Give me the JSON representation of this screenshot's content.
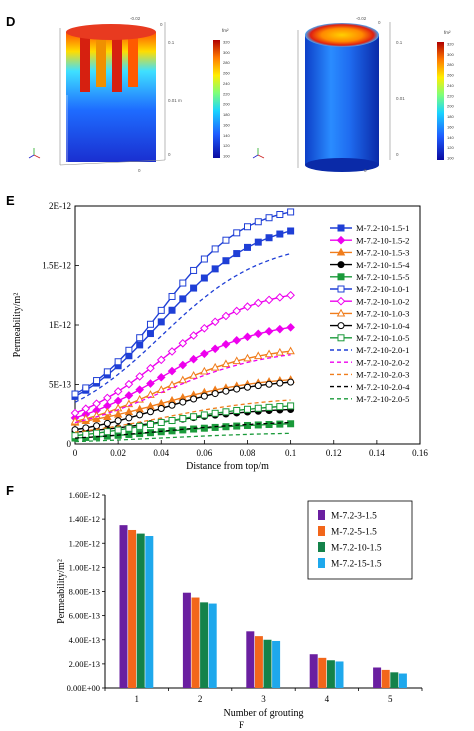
{
  "panels": {
    "d": {
      "letter": "D",
      "colorbar_unit": "fm²",
      "colorbar_ticks": [
        "320",
        "300",
        "280",
        "260",
        "240",
        "220",
        "200",
        "180",
        "160",
        "140",
        "120",
        "100"
      ],
      "axis_labels_left": [
        "-0.02",
        "0",
        "0.02",
        "0.1",
        "0.05",
        "0.01",
        "0",
        "-0.02",
        "0",
        "0.02"
      ],
      "axis_labels_right": [
        "-0.02",
        "0",
        "0.02",
        "0.1",
        "0.05",
        "0.01",
        "0",
        "-0.02",
        "0",
        "0.02"
      ],
      "axis_unit": "m"
    },
    "e": {
      "letter": "E"
    },
    "f": {
      "letter": "F",
      "caption": "F"
    }
  },
  "chart_data": [
    {
      "id": "E",
      "type": "line",
      "xlabel": "Distance from top/m",
      "ylabel": "Permeability/m²",
      "xlim": [
        0,
        0.16
      ],
      "ylim": [
        0,
        2e-12
      ],
      "x_ticks": [
        "0",
        "0.02",
        "0.04",
        "0.06",
        "0.08",
        "0.1",
        "0.12",
        "0.14",
        "0.16"
      ],
      "y_ticks": [
        "0",
        "5E-13",
        "1E-12",
        "1.5E-12",
        "2E-12"
      ],
      "legend_position": "right",
      "series": [
        {
          "name": "M-7.2-10-1.5-1",
          "color": "#1f3fd6",
          "marker": "square-filled",
          "dashed": false,
          "y0": 4e-13,
          "y1": 1.79e-12,
          "k": 45
        },
        {
          "name": "M-7.2-10-1.5-2",
          "color": "#ee00ee",
          "marker": "diamond-filled",
          "dashed": false,
          "y0": 2.2e-13,
          "y1": 9.8e-13,
          "k": 43
        },
        {
          "name": "M-7.2-10-1.5-3",
          "color": "#f07d1c",
          "marker": "triangle-filled",
          "dashed": false,
          "y0": 1.8e-13,
          "y1": 5.4e-13,
          "k": 42
        },
        {
          "name": "M-7.2-10-1.5-4",
          "color": "#000000",
          "marker": "circle-filled",
          "dashed": false,
          "y0": 1e-13,
          "y1": 2.9e-13,
          "k": 40
        },
        {
          "name": "M-7.2-10-1.5-5",
          "color": "#1a9a3a",
          "marker": "square-filled",
          "dashed": false,
          "y0": 5e-14,
          "y1": 1.7e-13,
          "k": 38
        },
        {
          "name": "M-7.2-10-1.0-1",
          "color": "#1f3fd6",
          "marker": "square-open",
          "dashed": false,
          "y0": 4.2e-13,
          "y1": 1.95e-12,
          "k": 52
        },
        {
          "name": "M-7.2-10-1.0-2",
          "color": "#ee00ee",
          "marker": "diamond-open",
          "dashed": false,
          "y0": 2.6e-13,
          "y1": 1.25e-12,
          "k": 46
        },
        {
          "name": "M-7.2-10-1.0-3",
          "color": "#f07d1c",
          "marker": "triangle-open",
          "dashed": false,
          "y0": 1.9e-13,
          "y1": 7.8e-13,
          "k": 44
        },
        {
          "name": "M-7.2-10-1.0-4",
          "color": "#000000",
          "marker": "circle-open",
          "dashed": false,
          "y0": 1.2e-13,
          "y1": 5.2e-13,
          "k": 42
        },
        {
          "name": "M-7.2-10-1.0-5",
          "color": "#1a9a3a",
          "marker": "square-open",
          "dashed": false,
          "y0": 7e-14,
          "y1": 3.2e-13,
          "k": 40
        },
        {
          "name": "M-7.2-10-2.0-1",
          "color": "#1f3fd6",
          "marker": "none",
          "dashed": true,
          "y0": 3.5e-13,
          "y1": 1.6e-12,
          "k": 42
        },
        {
          "name": "M-7.2-10-2.0-2",
          "color": "#ee00ee",
          "marker": "none",
          "dashed": true,
          "y0": 1.8e-13,
          "y1": 7.5e-13,
          "k": 40
        },
        {
          "name": "M-7.2-10-2.0-3",
          "color": "#f07d1c",
          "marker": "none",
          "dashed": true,
          "y0": 1e-13,
          "y1": 3.7e-13,
          "k": 38
        },
        {
          "name": "M-7.2-10-2.0-4",
          "color": "#000000",
          "marker": "none",
          "dashed": true,
          "y0": 5e-14,
          "y1": 1.8e-13,
          "k": 36
        },
        {
          "name": "M-7.2-10-2.0-5",
          "color": "#1a9a3a",
          "marker": "none",
          "dashed": true,
          "y0": 2e-14,
          "y1": 9e-14,
          "k": 34
        }
      ]
    },
    {
      "id": "F",
      "type": "bar",
      "xlabel": "Number of grouting",
      "ylabel": "Permeability/m²",
      "categories": [
        "1",
        "2",
        "3",
        "4",
        "5"
      ],
      "ylim": [
        0,
        1.6e-12
      ],
      "y_ticks": [
        "0.00E+00",
        "2.00E-13",
        "4.00E-13",
        "6.00E-13",
        "8.00E-13",
        "1.00E-12",
        "1.20E-12",
        "1.40E-12",
        "1.60E-12"
      ],
      "legend_position": "top-right",
      "series": [
        {
          "name": "M-7.2-3-1.5",
          "color": "#6a1fa0",
          "values": [
            1.35e-12,
            7.9e-13,
            4.7e-13,
            2.8e-13,
            1.7e-13
          ]
        },
        {
          "name": "M-7.2-5-1.5",
          "color": "#f2661a",
          "values": [
            1.31e-12,
            7.5e-13,
            4.3e-13,
            2.5e-13,
            1.5e-13
          ]
        },
        {
          "name": "M-7.2-10-1.5",
          "color": "#14824a",
          "values": [
            1.28e-12,
            7.1e-13,
            4e-13,
            2.3e-13,
            1.3e-13
          ]
        },
        {
          "name": "M-7.2-15-1.5",
          "color": "#1ea8ec",
          "values": [
            1.26e-12,
            7e-13,
            3.9e-13,
            2.2e-13,
            1.2e-13
          ]
        }
      ]
    }
  ]
}
